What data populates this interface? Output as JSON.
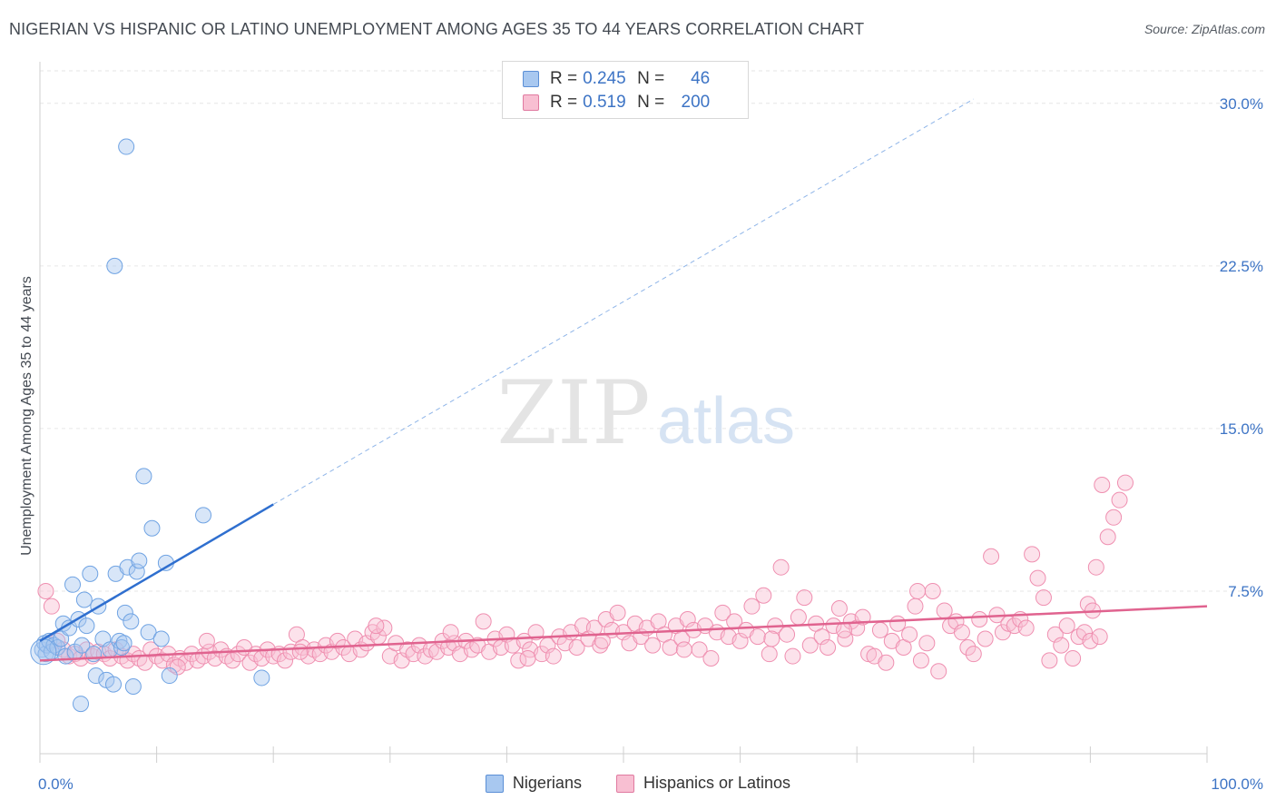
{
  "title": "NIGERIAN VS HISPANIC OR LATINO UNEMPLOYMENT AMONG AGES 35 TO 44 YEARS CORRELATION CHART",
  "source": "Source: ZipAtlas.com",
  "watermark": {
    "zip": "ZIP",
    "atlas": "atlas"
  },
  "legend": {
    "rows": [
      {
        "r_label": "R =",
        "r_value": "0.245",
        "n_label": "N =",
        "n_value": "46",
        "color": "#a8c8f0",
        "border": "#5b8fd6"
      },
      {
        "r_label": "R =",
        "r_value": "0.519",
        "n_label": "N =",
        "n_value": "200",
        "color": "#f8bfd2",
        "border": "#e07aa0"
      }
    ]
  },
  "bottom_legend": [
    {
      "label": "Nigerians",
      "color": "#a8c8f0",
      "border": "#5b8fd6"
    },
    {
      "label": "Hispanics or Latinos",
      "color": "#f8bfd2",
      "border": "#e07aa0"
    }
  ],
  "chart_data": {
    "type": "scatter",
    "xlabel": "",
    "ylabel": "Unemployment Among Ages 35 to 44 years",
    "xlim": [
      0,
      100
    ],
    "ylim": [
      0,
      31.5
    ],
    "x_tick_labels": [
      {
        "value": 0,
        "label": "0.0%"
      },
      {
        "value": 100,
        "label": "100.0%"
      }
    ],
    "y_tick_labels": [
      {
        "value": 7.5,
        "label": "7.5%"
      },
      {
        "value": 15.0,
        "label": "15.0%"
      },
      {
        "value": 22.5,
        "label": "22.5%"
      },
      {
        "value": 30.0,
        "label": "30.0%"
      }
    ],
    "grid": true,
    "colors": {
      "nigerians": "#6fa3e3",
      "hispanics": "#ef8fb0",
      "nig_line": "#2f6fcf",
      "his_line": "#e0638f",
      "tick_label": "#3d74c5"
    },
    "series": [
      {
        "name": "Nigerians",
        "trend": {
          "x0": 0,
          "y0": 5.2,
          "x1": 20,
          "y1": 11.5,
          "dash_to_x": 80,
          "dash_to_y": 30.2
        },
        "points": [
          [
            0.2,
            4.8
          ],
          [
            0.4,
            5.1
          ],
          [
            0.5,
            4.6
          ],
          [
            0.6,
            5.0
          ],
          [
            0.8,
            5.2
          ],
          [
            1.0,
            4.7
          ],
          [
            1.2,
            5.0
          ],
          [
            1.5,
            4.9
          ],
          [
            1.8,
            5.3
          ],
          [
            2.0,
            6.0
          ],
          [
            2.2,
            4.5
          ],
          [
            2.5,
            5.8
          ],
          [
            2.8,
            7.8
          ],
          [
            3.0,
            4.7
          ],
          [
            3.3,
            6.2
          ],
          [
            3.6,
            5.0
          ],
          [
            3.8,
            7.1
          ],
          [
            4.0,
            5.9
          ],
          [
            4.3,
            8.3
          ],
          [
            4.6,
            4.6
          ],
          [
            4.8,
            3.6
          ],
          [
            5.0,
            6.8
          ],
          [
            5.4,
            5.3
          ],
          [
            5.7,
            3.4
          ],
          [
            6.0,
            4.8
          ],
          [
            6.3,
            3.2
          ],
          [
            6.5,
            8.3
          ],
          [
            6.8,
            5.2
          ],
          [
            7.0,
            4.9
          ],
          [
            7.3,
            6.5
          ],
          [
            7.5,
            8.6
          ],
          [
            7.8,
            6.1
          ],
          [
            8.0,
            3.1
          ],
          [
            8.3,
            8.4
          ],
          [
            8.5,
            8.9
          ],
          [
            8.9,
            12.8
          ],
          [
            7.2,
            5.1
          ],
          [
            6.4,
            22.5
          ],
          [
            9.3,
            5.6
          ],
          [
            9.6,
            10.4
          ],
          [
            10.4,
            5.3
          ],
          [
            10.8,
            8.8
          ],
          [
            11.1,
            3.6
          ],
          [
            3.5,
            2.3
          ],
          [
            14.0,
            11.0
          ],
          [
            19.0,
            3.5
          ]
        ],
        "extra_points": [
          [
            7.4,
            28.0
          ]
        ]
      },
      {
        "name": "Hispanics or Latinos",
        "trend": {
          "x0": 0,
          "y0": 4.3,
          "x1": 100,
          "y1": 6.8
        },
        "points": [
          [
            0.5,
            7.5
          ],
          [
            1.0,
            6.8
          ],
          [
            1.5,
            5.2
          ],
          [
            2.0,
            4.8
          ],
          [
            2.5,
            4.5
          ],
          [
            3.0,
            4.6
          ],
          [
            3.5,
            4.4
          ],
          [
            4.0,
            4.8
          ],
          [
            4.5,
            4.5
          ],
          [
            5.0,
            4.7
          ],
          [
            5.5,
            4.6
          ],
          [
            6.0,
            4.4
          ],
          [
            6.5,
            4.8
          ],
          [
            7.0,
            4.5
          ],
          [
            7.5,
            4.3
          ],
          [
            8.0,
            4.6
          ],
          [
            8.5,
            4.4
          ],
          [
            9.0,
            4.2
          ],
          [
            9.5,
            4.8
          ],
          [
            10.0,
            4.5
          ],
          [
            10.5,
            4.3
          ],
          [
            11.0,
            4.6
          ],
          [
            11.5,
            4.1
          ],
          [
            12.0,
            4.4
          ],
          [
            12.5,
            4.2
          ],
          [
            13.0,
            4.6
          ],
          [
            13.5,
            4.3
          ],
          [
            14.0,
            4.5
          ],
          [
            14.5,
            4.7
          ],
          [
            15.0,
            4.4
          ],
          [
            15.5,
            4.8
          ],
          [
            16.0,
            4.5
          ],
          [
            16.5,
            4.3
          ],
          [
            17.0,
            4.6
          ],
          [
            17.5,
            4.9
          ],
          [
            18.0,
            4.2
          ],
          [
            18.5,
            4.6
          ],
          [
            19.0,
            4.4
          ],
          [
            19.5,
            4.8
          ],
          [
            20.0,
            4.5
          ],
          [
            20.5,
            4.6
          ],
          [
            21.0,
            4.3
          ],
          [
            21.5,
            4.7
          ],
          [
            22.0,
            5.5
          ],
          [
            22.5,
            4.9
          ],
          [
            23.0,
            4.5
          ],
          [
            23.5,
            4.8
          ],
          [
            24.0,
            4.6
          ],
          [
            24.5,
            5.0
          ],
          [
            25.0,
            4.7
          ],
          [
            25.5,
            5.2
          ],
          [
            26.0,
            4.9
          ],
          [
            26.5,
            4.6
          ],
          [
            27.0,
            5.3
          ],
          [
            27.5,
            4.8
          ],
          [
            28.0,
            5.1
          ],
          [
            28.5,
            5.6
          ],
          [
            29.0,
            5.4
          ],
          [
            29.5,
            5.8
          ],
          [
            30.0,
            4.5
          ],
          [
            30.5,
            5.1
          ],
          [
            31.0,
            4.3
          ],
          [
            31.5,
            4.8
          ],
          [
            32.0,
            4.6
          ],
          [
            32.5,
            5.0
          ],
          [
            33.0,
            4.5
          ],
          [
            33.5,
            4.8
          ],
          [
            34.0,
            4.7
          ],
          [
            34.5,
            5.2
          ],
          [
            35.0,
            4.9
          ],
          [
            35.5,
            5.1
          ],
          [
            36.0,
            4.6
          ],
          [
            36.5,
            5.2
          ],
          [
            37.0,
            4.8
          ],
          [
            37.5,
            5.0
          ],
          [
            38.0,
            6.1
          ],
          [
            38.5,
            4.7
          ],
          [
            39.0,
            5.3
          ],
          [
            39.5,
            4.9
          ],
          [
            40.0,
            5.5
          ],
          [
            40.5,
            5.0
          ],
          [
            41.0,
            4.3
          ],
          [
            41.5,
            5.2
          ],
          [
            42.0,
            4.8
          ],
          [
            42.5,
            5.6
          ],
          [
            43.0,
            4.6
          ],
          [
            43.5,
            5.0
          ],
          [
            44.0,
            4.5
          ],
          [
            44.5,
            5.4
          ],
          [
            45.0,
            5.1
          ],
          [
            45.5,
            5.6
          ],
          [
            46.0,
            4.9
          ],
          [
            46.5,
            5.9
          ],
          [
            47.0,
            5.3
          ],
          [
            47.5,
            5.8
          ],
          [
            48.0,
            5.0
          ],
          [
            48.5,
            6.2
          ],
          [
            49.0,
            5.7
          ],
          [
            49.5,
            6.5
          ],
          [
            50.0,
            5.6
          ],
          [
            50.5,
            5.1
          ],
          [
            51.0,
            6.0
          ],
          [
            51.5,
            5.4
          ],
          [
            52.0,
            5.8
          ],
          [
            52.5,
            5.0
          ],
          [
            53.0,
            6.1
          ],
          [
            53.5,
            5.5
          ],
          [
            54.0,
            4.9
          ],
          [
            54.5,
            5.9
          ],
          [
            55.0,
            5.3
          ],
          [
            55.5,
            6.2
          ],
          [
            56.0,
            5.7
          ],
          [
            56.5,
            4.8
          ],
          [
            57.0,
            5.9
          ],
          [
            57.5,
            4.4
          ],
          [
            58.0,
            5.6
          ],
          [
            58.5,
            6.5
          ],
          [
            59.0,
            5.4
          ],
          [
            59.5,
            6.1
          ],
          [
            60.0,
            5.2
          ],
          [
            60.5,
            5.7
          ],
          [
            61.0,
            6.8
          ],
          [
            61.5,
            5.4
          ],
          [
            62.0,
            7.3
          ],
          [
            62.5,
            4.6
          ],
          [
            63.0,
            5.9
          ],
          [
            63.5,
            8.6
          ],
          [
            64.0,
            5.5
          ],
          [
            64.5,
            4.5
          ],
          [
            65.0,
            6.3
          ],
          [
            65.5,
            7.2
          ],
          [
            66.0,
            5.0
          ],
          [
            66.5,
            6.0
          ],
          [
            67.0,
            5.4
          ],
          [
            67.5,
            4.9
          ],
          [
            68.0,
            5.9
          ],
          [
            68.5,
            6.7
          ],
          [
            69.0,
            5.3
          ],
          [
            69.5,
            6.1
          ],
          [
            70.0,
            5.8
          ],
          [
            70.5,
            6.3
          ],
          [
            71.0,
            4.6
          ],
          [
            71.5,
            4.5
          ],
          [
            72.0,
            5.7
          ],
          [
            72.5,
            4.2
          ],
          [
            73.0,
            5.2
          ],
          [
            73.5,
            6.0
          ],
          [
            74.0,
            4.9
          ],
          [
            74.5,
            5.5
          ],
          [
            75.0,
            6.8
          ],
          [
            75.5,
            4.3
          ],
          [
            76.0,
            5.1
          ],
          [
            76.5,
            7.5
          ],
          [
            77.0,
            3.8
          ],
          [
            77.5,
            6.6
          ],
          [
            78.0,
            5.9
          ],
          [
            78.5,
            6.1
          ],
          [
            79.0,
            5.6
          ],
          [
            79.5,
            4.9
          ],
          [
            80.0,
            4.6
          ],
          [
            80.5,
            6.2
          ],
          [
            81.0,
            5.3
          ],
          [
            81.5,
            9.1
          ],
          [
            82.0,
            6.4
          ],
          [
            82.5,
            5.6
          ],
          [
            83.0,
            6.0
          ],
          [
            83.5,
            5.9
          ],
          [
            84.0,
            6.2
          ],
          [
            84.5,
            5.8
          ],
          [
            85.0,
            9.2
          ],
          [
            85.5,
            8.1
          ],
          [
            86.0,
            7.2
          ],
          [
            86.5,
            4.3
          ],
          [
            87.0,
            5.5
          ],
          [
            87.5,
            5.0
          ],
          [
            88.0,
            5.9
          ],
          [
            88.5,
            4.4
          ],
          [
            89.0,
            5.4
          ],
          [
            89.5,
            5.6
          ],
          [
            90.0,
            5.2
          ],
          [
            90.5,
            8.6
          ],
          [
            91.0,
            12.4
          ],
          [
            91.5,
            10.0
          ],
          [
            92.0,
            10.9
          ],
          [
            92.5,
            11.7
          ],
          [
            93.0,
            12.5
          ],
          [
            89.8,
            6.9
          ],
          [
            90.2,
            6.6
          ],
          [
            90.8,
            5.4
          ],
          [
            75.2,
            7.5
          ],
          [
            68.9,
            5.7
          ],
          [
            62.7,
            5.3
          ],
          [
            55.2,
            4.8
          ],
          [
            48.2,
            5.2
          ],
          [
            41.8,
            4.4
          ],
          [
            35.2,
            5.6
          ],
          [
            28.8,
            5.9
          ],
          [
            22.3,
            4.7
          ],
          [
            14.3,
            5.2
          ],
          [
            11.8,
            4.0
          ]
        ]
      }
    ]
  }
}
